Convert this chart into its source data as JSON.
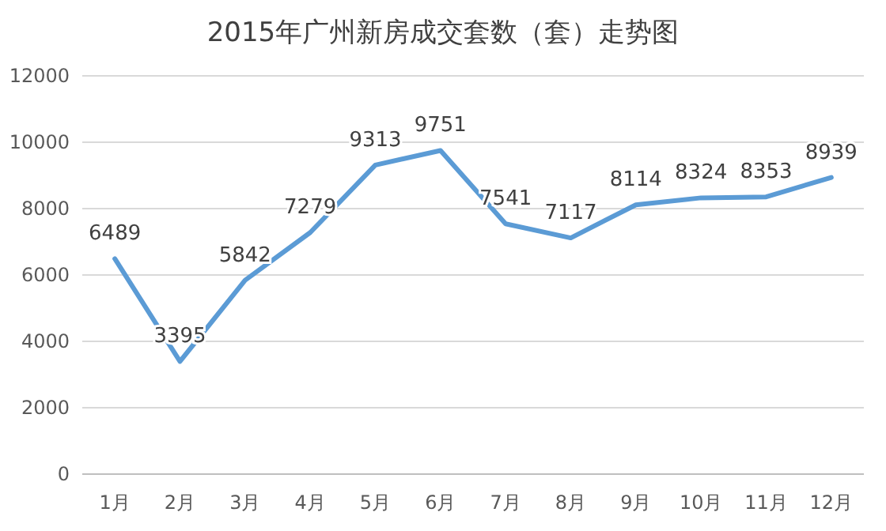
{
  "chart_data": {
    "type": "line",
    "title": "2015年广州新房成交套数（套）走势图",
    "categories": [
      "1月",
      "2月",
      "3月",
      "4月",
      "5月",
      "6月",
      "7月",
      "8月",
      "9月",
      "10月",
      "11月",
      "12月"
    ],
    "series": [
      {
        "color": "#5b9bd5",
        "values": [
          6489,
          3395,
          5842,
          7279,
          9313,
          9751,
          7541,
          7117,
          8114,
          8324,
          8353,
          8939
        ]
      }
    ],
    "ylim": [
      0,
      12000
    ],
    "yticks": [
      0,
      2000,
      4000,
      6000,
      8000,
      10000,
      12000
    ],
    "grid": "y",
    "data_labels": true,
    "marker": "none",
    "line_style": "solid"
  }
}
